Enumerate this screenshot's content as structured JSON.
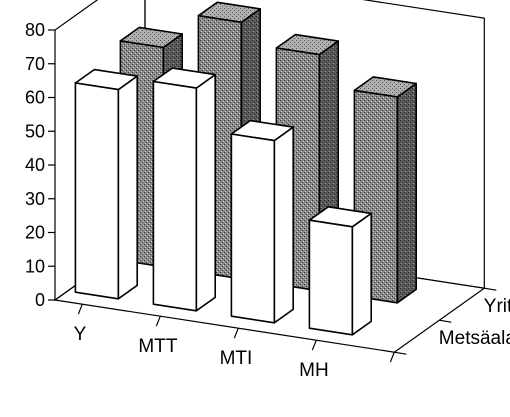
{
  "chart_data": {
    "type": "bar",
    "categories": [
      "Y",
      "MTT",
      "MTI",
      "MH"
    ],
    "series": [
      {
        "name": "Metsäala",
        "values": [
          62,
          66,
          54,
          32
        ]
      },
      {
        "name": "Yrityst.",
        "values": [
          65,
          76,
          70,
          61
        ]
      }
    ],
    "ylim": [
      0,
      80
    ],
    "yticks": [
      "0",
      "10",
      "20",
      "30",
      "40",
      "50",
      "60",
      "70",
      "80"
    ],
    "title": "",
    "xlabel": "",
    "ylabel": "",
    "grid": false,
    "colors": {
      "front": "#ffffff",
      "back": "#7a7a7a",
      "outline": "#000000"
    }
  }
}
